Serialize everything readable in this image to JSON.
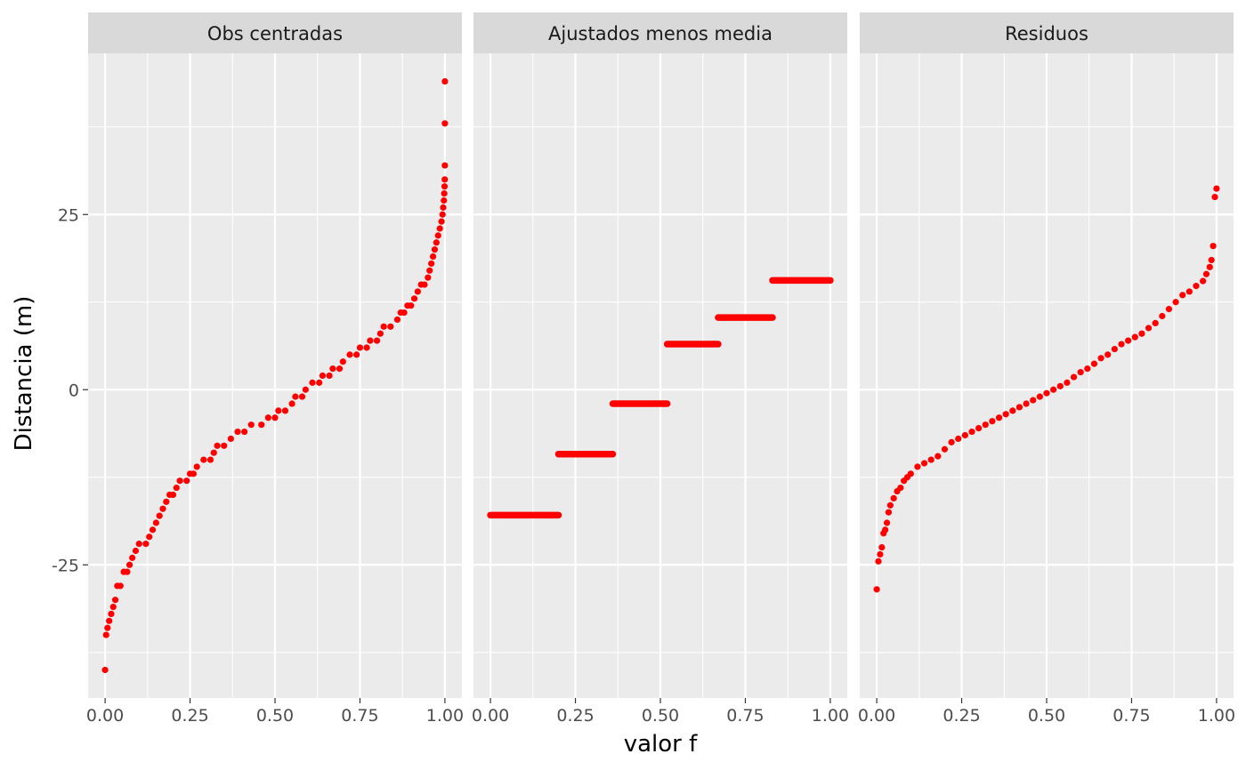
{
  "chart_data": {
    "type": "scatter",
    "xlabel": "valor f",
    "ylabel": "Distancia (m)",
    "xlim": [
      -0.05,
      1.05
    ],
    "ylim": [
      -44,
      48
    ],
    "x_ticks": [
      0.0,
      0.25,
      0.5,
      0.75,
      1.0
    ],
    "x_tick_labels": [
      "0.00",
      "0.25",
      "0.50",
      "0.75",
      "1.00"
    ],
    "y_ticks": [
      -25,
      0,
      25
    ],
    "y_tick_labels": [
      "-25",
      "0",
      "25"
    ],
    "grid": true,
    "legend": "none",
    "point_color": "#ff0000",
    "panel_background": "#ebebeb",
    "strip_background": "#d9d9d9",
    "panels": [
      {
        "title": "Obs centradas",
        "points": [
          [
            0.0,
            -40
          ],
          [
            0.003,
            -35
          ],
          [
            0.007,
            -34
          ],
          [
            0.012,
            -33
          ],
          [
            0.018,
            -32
          ],
          [
            0.024,
            -31
          ],
          [
            0.03,
            -30
          ],
          [
            0.036,
            -28
          ],
          [
            0.045,
            -28
          ],
          [
            0.055,
            -26
          ],
          [
            0.065,
            -26
          ],
          [
            0.072,
            -25
          ],
          [
            0.08,
            -24
          ],
          [
            0.09,
            -23
          ],
          [
            0.1,
            -22
          ],
          [
            0.12,
            -22
          ],
          [
            0.13,
            -21
          ],
          [
            0.14,
            -20
          ],
          [
            0.15,
            -19
          ],
          [
            0.16,
            -18
          ],
          [
            0.17,
            -17
          ],
          [
            0.18,
            -16
          ],
          [
            0.19,
            -15
          ],
          [
            0.2,
            -15
          ],
          [
            0.21,
            -14
          ],
          [
            0.22,
            -13
          ],
          [
            0.24,
            -13
          ],
          [
            0.25,
            -12
          ],
          [
            0.26,
            -12
          ],
          [
            0.27,
            -11
          ],
          [
            0.29,
            -10
          ],
          [
            0.31,
            -10
          ],
          [
            0.32,
            -9
          ],
          [
            0.33,
            -8
          ],
          [
            0.35,
            -8
          ],
          [
            0.37,
            -7
          ],
          [
            0.39,
            -6
          ],
          [
            0.41,
            -6
          ],
          [
            0.43,
            -5
          ],
          [
            0.46,
            -5
          ],
          [
            0.48,
            -4
          ],
          [
            0.5,
            -4
          ],
          [
            0.51,
            -3
          ],
          [
            0.53,
            -3
          ],
          [
            0.55,
            -2
          ],
          [
            0.56,
            -1
          ],
          [
            0.58,
            -1
          ],
          [
            0.59,
            0
          ],
          [
            0.61,
            1
          ],
          [
            0.63,
            1
          ],
          [
            0.64,
            2
          ],
          [
            0.66,
            2
          ],
          [
            0.67,
            3
          ],
          [
            0.69,
            3
          ],
          [
            0.7,
            4
          ],
          [
            0.72,
            5
          ],
          [
            0.74,
            5
          ],
          [
            0.75,
            6
          ],
          [
            0.77,
            6
          ],
          [
            0.78,
            7
          ],
          [
            0.8,
            7
          ],
          [
            0.81,
            8
          ],
          [
            0.82,
            9
          ],
          [
            0.84,
            9
          ],
          [
            0.86,
            10
          ],
          [
            0.87,
            11
          ],
          [
            0.88,
            11
          ],
          [
            0.89,
            12
          ],
          [
            0.9,
            12
          ],
          [
            0.91,
            13
          ],
          [
            0.92,
            14
          ],
          [
            0.93,
            15
          ],
          [
            0.94,
            15
          ],
          [
            0.95,
            16
          ],
          [
            0.955,
            17
          ],
          [
            0.96,
            18
          ],
          [
            0.965,
            19
          ],
          [
            0.97,
            20
          ],
          [
            0.975,
            21
          ],
          [
            0.98,
            22
          ],
          [
            0.985,
            23
          ],
          [
            0.99,
            24
          ],
          [
            0.993,
            25
          ],
          [
            0.995,
            26
          ],
          [
            0.997,
            27
          ],
          [
            0.998,
            28
          ],
          [
            0.999,
            29
          ],
          [
            0.9995,
            30
          ],
          [
            0.9998,
            32
          ],
          [
            0.9999,
            38
          ],
          [
            1.0,
            44
          ]
        ]
      },
      {
        "title": "Ajustados menos media",
        "segments": [
          {
            "x0": 0.0,
            "x1": 0.2,
            "y": -17.9
          },
          {
            "x0": 0.2,
            "x1": 0.36,
            "y": -9.2
          },
          {
            "x0": 0.36,
            "x1": 0.52,
            "y": -2.0
          },
          {
            "x0": 0.52,
            "x1": 0.67,
            "y": 6.5
          },
          {
            "x0": 0.67,
            "x1": 0.83,
            "y": 10.3
          },
          {
            "x0": 0.83,
            "x1": 1.0,
            "y": 15.6
          }
        ]
      },
      {
        "title": "Residuos",
        "points": [
          [
            0.0,
            -28.5
          ],
          [
            0.005,
            -24.5
          ],
          [
            0.01,
            -23.5
          ],
          [
            0.015,
            -22.5
          ],
          [
            0.02,
            -20.5
          ],
          [
            0.025,
            -20
          ],
          [
            0.03,
            -19
          ],
          [
            0.035,
            -17.5
          ],
          [
            0.04,
            -16.5
          ],
          [
            0.05,
            -15.5
          ],
          [
            0.06,
            -14.5
          ],
          [
            0.07,
            -14
          ],
          [
            0.08,
            -13
          ],
          [
            0.09,
            -12.5
          ],
          [
            0.1,
            -12
          ],
          [
            0.12,
            -11
          ],
          [
            0.14,
            -10.5
          ],
          [
            0.16,
            -10
          ],
          [
            0.18,
            -9.5
          ],
          [
            0.2,
            -8.5
          ],
          [
            0.22,
            -7.5
          ],
          [
            0.24,
            -7
          ],
          [
            0.26,
            -6.5
          ],
          [
            0.28,
            -6
          ],
          [
            0.3,
            -5.5
          ],
          [
            0.32,
            -5
          ],
          [
            0.34,
            -4.5
          ],
          [
            0.36,
            -4
          ],
          [
            0.38,
            -3.5
          ],
          [
            0.4,
            -3
          ],
          [
            0.42,
            -2.5
          ],
          [
            0.44,
            -2
          ],
          [
            0.46,
            -1.5
          ],
          [
            0.48,
            -1
          ],
          [
            0.5,
            -0.5
          ],
          [
            0.52,
            0
          ],
          [
            0.54,
            0.5
          ],
          [
            0.56,
            1
          ],
          [
            0.58,
            1.8
          ],
          [
            0.6,
            2.5
          ],
          [
            0.62,
            3
          ],
          [
            0.64,
            3.7
          ],
          [
            0.66,
            4.5
          ],
          [
            0.68,
            5
          ],
          [
            0.7,
            5.8
          ],
          [
            0.72,
            6.5
          ],
          [
            0.74,
            7
          ],
          [
            0.76,
            7.5
          ],
          [
            0.78,
            8
          ],
          [
            0.8,
            8.8
          ],
          [
            0.82,
            9.5
          ],
          [
            0.84,
            10.5
          ],
          [
            0.86,
            11.5
          ],
          [
            0.88,
            12.5
          ],
          [
            0.9,
            13.5
          ],
          [
            0.92,
            14
          ],
          [
            0.94,
            14.8
          ],
          [
            0.96,
            15.5
          ],
          [
            0.97,
            16.5
          ],
          [
            0.98,
            17.5
          ],
          [
            0.985,
            18.5
          ],
          [
            0.99,
            20.5
          ],
          [
            0.995,
            27.5
          ],
          [
            1.0,
            28.7
          ]
        ]
      }
    ]
  }
}
